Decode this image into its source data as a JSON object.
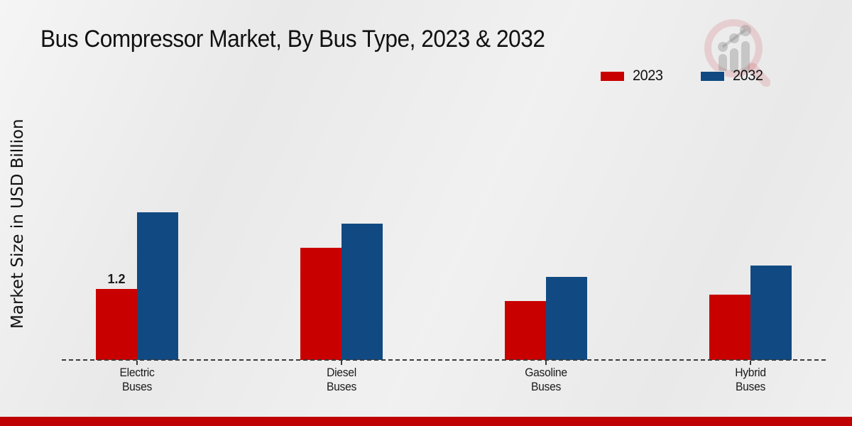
{
  "title": "Bus Compressor Market, By Bus Type, 2023 & 2032",
  "y_axis_label": "Market Size in USD Billion",
  "colors": {
    "series_2023": "#c80000",
    "series_2032": "#114a82",
    "bottom_band": "#c00000",
    "axis": "#3b3b3b",
    "text": "#1a1a1a"
  },
  "logo": {
    "name": "magnifier-bar-chart-watermark"
  },
  "chart_data": {
    "type": "bar",
    "title": "Bus Compressor Market, By Bus Type, 2023 & 2032",
    "xlabel": "",
    "ylabel": "Market Size in USD Billion",
    "categories": [
      "Electric Buses",
      "Diesel Buses",
      "Gasoline Buses",
      "Hybrid Buses"
    ],
    "series": [
      {
        "name": "2023",
        "color": "#c80000",
        "values": [
          1.2,
          1.9,
          1.0,
          1.1
        ]
      },
      {
        "name": "2032",
        "color": "#114a82",
        "values": [
          2.5,
          2.3,
          1.4,
          1.6
        ]
      }
    ],
    "ylim": [
      0,
      3
    ],
    "grid": false,
    "axis_line_style": "dashed",
    "legend_position": "top-right",
    "data_labels": [
      {
        "series_index": 0,
        "category_index": 0,
        "text": "1.2"
      }
    ]
  }
}
